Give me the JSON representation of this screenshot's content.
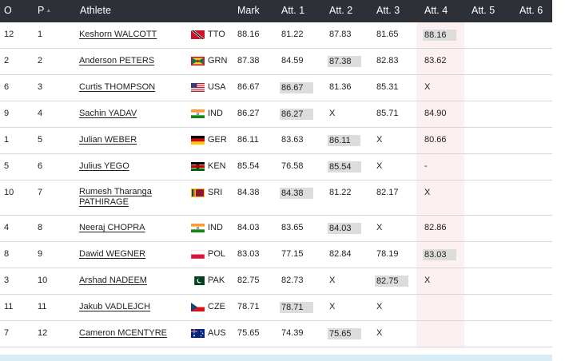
{
  "header": {
    "order": "O",
    "place": "P",
    "athlete": "Athlete",
    "mark": "Mark",
    "attempts": [
      "Att. 1",
      "Att. 2",
      "Att. 3",
      "Att. 4",
      "Att. 5",
      "Att. 6"
    ]
  },
  "rows": [
    {
      "order": "12",
      "place": "1",
      "name": "Keshorn WALCOTT",
      "country": "TTO",
      "flag": "tto",
      "mark": "88.16",
      "att": [
        "81.22",
        "87.83",
        "81.65",
        "88.16",
        "",
        ""
      ],
      "best": 3
    },
    {
      "order": "2",
      "place": "2",
      "name": "Anderson PETERS",
      "country": "GRN",
      "flag": "grn",
      "mark": "87.38",
      "att": [
        "84.59",
        "87.38",
        "82.83",
        "83.62",
        "",
        ""
      ],
      "best": 1
    },
    {
      "order": "6",
      "place": "3",
      "name": "Curtis THOMPSON",
      "country": "USA",
      "flag": "usa",
      "mark": "86.67",
      "att": [
        "86.67",
        "81.36",
        "85.31",
        "X",
        "",
        ""
      ],
      "best": 0
    },
    {
      "order": "9",
      "place": "4",
      "name": "Sachin YADAV",
      "country": "IND",
      "flag": "ind",
      "mark": "86.27",
      "att": [
        "86.27",
        "X",
        "85.71",
        "84.90",
        "",
        ""
      ],
      "best": 0
    },
    {
      "order": "1",
      "place": "5",
      "name": "Julian WEBER",
      "country": "GER",
      "flag": "ger",
      "mark": "86.11",
      "att": [
        "83.63",
        "86.11",
        "X",
        "80.66",
        "",
        ""
      ],
      "best": 1
    },
    {
      "order": "5",
      "place": "6",
      "name": "Julius YEGO",
      "country": "KEN",
      "flag": "ken",
      "mark": "85.54",
      "att": [
        "76.58",
        "85.54",
        "X",
        "-",
        "",
        ""
      ],
      "best": 1
    },
    {
      "order": "10",
      "place": "7",
      "name_lines": [
        "Rumesh Tharanga",
        "PATHIRAGE"
      ],
      "country": "SRI",
      "flag": "sri",
      "mark": "84.38",
      "att": [
        "84.38",
        "81.22",
        "82.17",
        "X",
        "",
        ""
      ],
      "best": 0
    },
    {
      "order": "4",
      "place": "8",
      "name": "Neeraj CHOPRA",
      "country": "IND",
      "flag": "ind",
      "mark": "84.03",
      "att": [
        "83.65",
        "84.03",
        "X",
        "82.86",
        "",
        ""
      ],
      "best": 1
    },
    {
      "order": "8",
      "place": "9",
      "name": "Dawid WEGNER",
      "country": "POL",
      "flag": "pol",
      "mark": "83.03",
      "att": [
        "77.15",
        "82.84",
        "78.19",
        "83.03",
        "",
        ""
      ],
      "best": 3
    },
    {
      "order": "3",
      "place": "10",
      "name": "Arshad NADEEM",
      "country": "PAK",
      "flag": "pak",
      "mark": "82.75",
      "att": [
        "82.73",
        "X",
        "82.75",
        "X",
        "",
        ""
      ],
      "best": 2
    },
    {
      "order": "11",
      "place": "11",
      "name": "Jakub VADLEJCH",
      "country": "CZE",
      "flag": "cze",
      "mark": "78.71",
      "att": [
        "78.71",
        "X",
        "X",
        "",
        "",
        ""
      ],
      "best": 0
    },
    {
      "order": "7",
      "place": "12",
      "name": "Cameron MCENTYRE",
      "country": "AUS",
      "flag": "aus",
      "mark": "75.65",
      "att": [
        "74.39",
        "75.65",
        "X",
        "",
        "",
        ""
      ],
      "best": 1
    }
  ]
}
